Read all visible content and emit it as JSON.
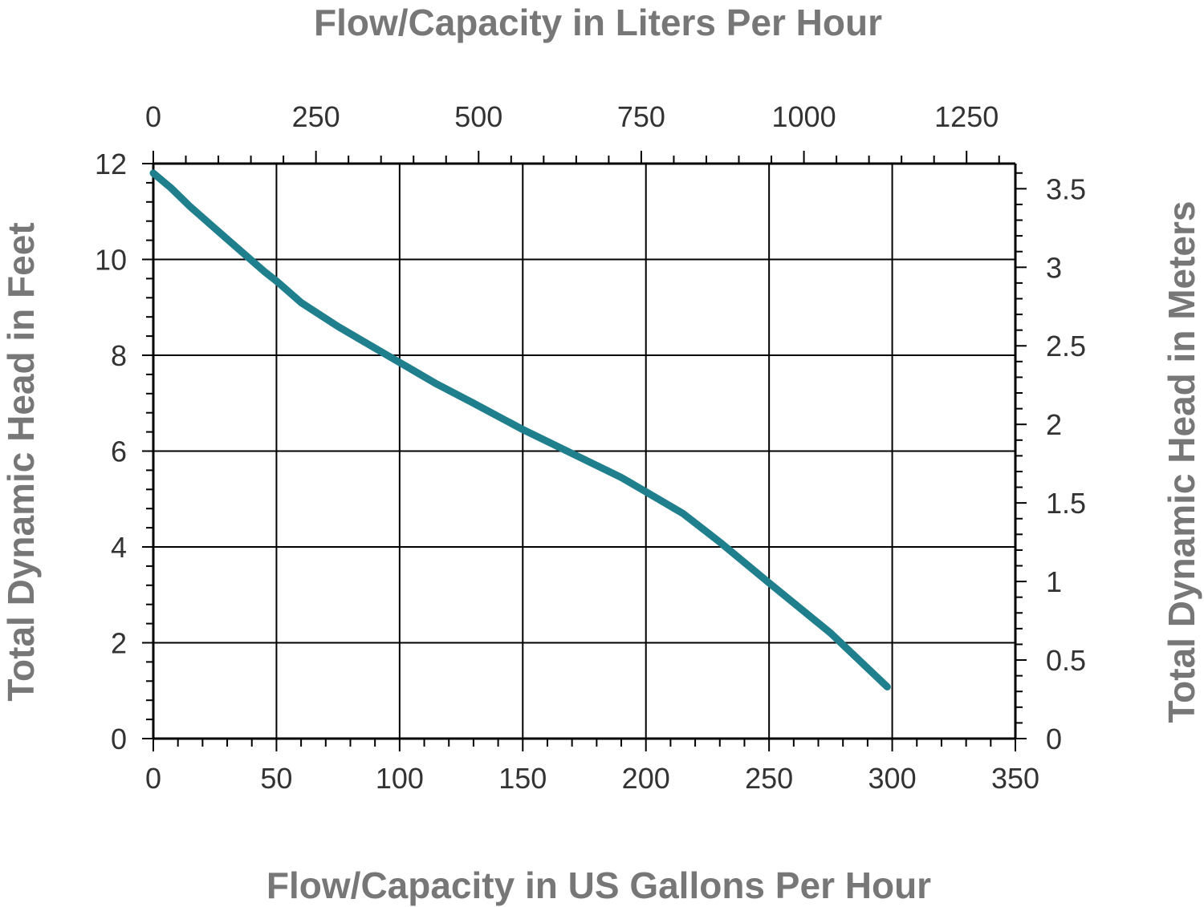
{
  "chart_data": {
    "type": "line",
    "title": "",
    "xlabel": "Flow/Capacity in US Gallons Per Hour",
    "ylabel": "Total Dynamic Head in Feet",
    "x2label": "Flow/Capacity in Liters Per Hour",
    "y2label": "Total Dynamic Head in Meters",
    "xlim": [
      0,
      350
    ],
    "ylim": [
      0,
      12
    ],
    "x2lim": [
      0,
      1325
    ],
    "y2lim": [
      0,
      3.66
    ],
    "x_ticks": [
      "0",
      "50",
      "100",
      "150",
      "200",
      "250",
      "300",
      "350"
    ],
    "y_ticks": [
      "0",
      "2",
      "4",
      "6",
      "8",
      "10",
      "12"
    ],
    "x2_ticks": [
      "0",
      "250",
      "500",
      "750",
      "1000",
      "1250"
    ],
    "y2_ticks": [
      "0",
      "0.5",
      "1",
      "1.5",
      "2",
      "2.5",
      "3",
      "3.5"
    ],
    "grid": true,
    "legend": "none",
    "line_color": "#1f7f8c",
    "series": [
      {
        "x": [
          0,
          7,
          15,
          25,
          35,
          45,
          50,
          60,
          75,
          85,
          100,
          115,
          130,
          150,
          170,
          190,
          200,
          215,
          230,
          250,
          275,
          298
        ],
        "y": [
          11.8,
          11.5,
          11.1,
          10.65,
          10.2,
          9.75,
          9.55,
          9.1,
          8.6,
          8.3,
          7.85,
          7.4,
          7.0,
          6.45,
          5.95,
          5.45,
          5.15,
          4.7,
          4.1,
          3.25,
          2.2,
          1.08
        ]
      }
    ]
  }
}
